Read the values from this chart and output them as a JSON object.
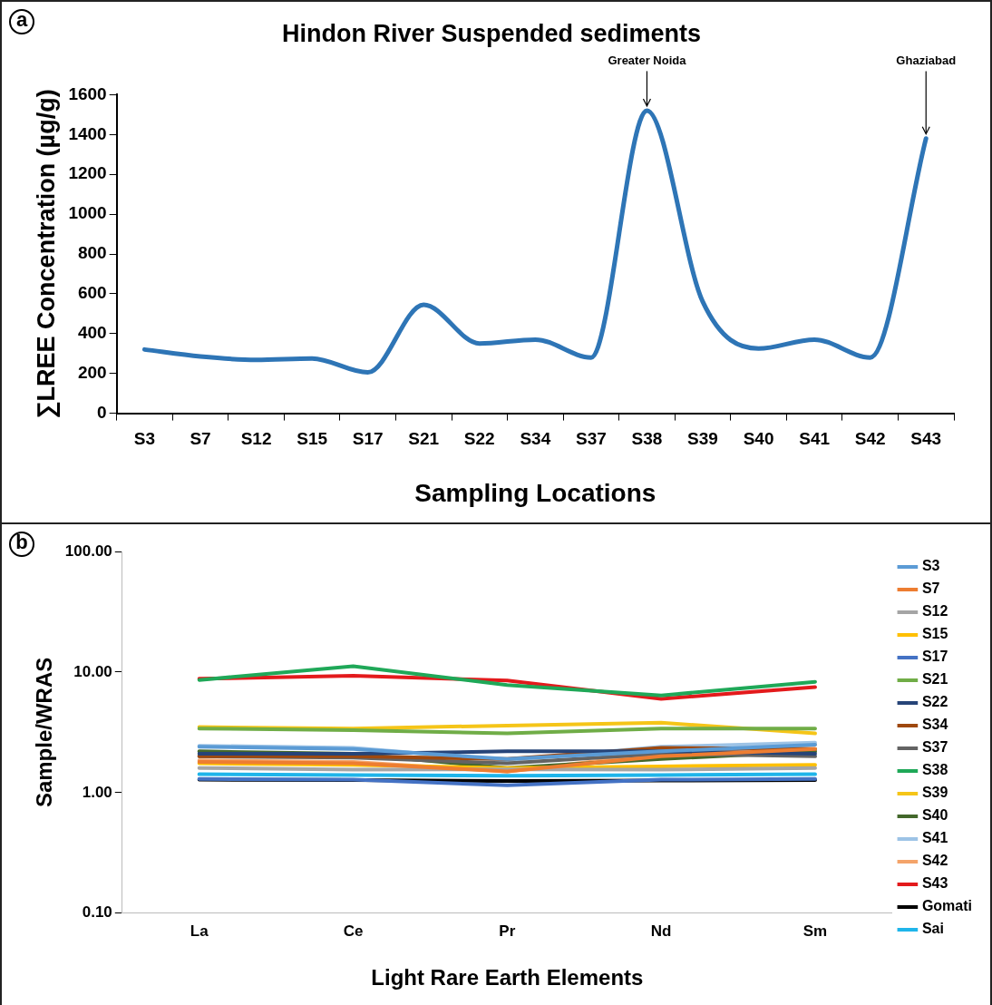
{
  "chart_data": [
    {
      "type": "line",
      "title": "Hindon River Suspended sediments",
      "xlabel": "Sampling Locations",
      "ylabel": "∑LREE Concentration (µg/g)",
      "categories": [
        "S3",
        "S7",
        "S12",
        "S15",
        "S17",
        "S21",
        "S22",
        "S34",
        "S37",
        "S38",
        "S39",
        "S40",
        "S41",
        "S42",
        "S43"
      ],
      "series": [
        {
          "color": "#2e75b6",
          "values": [
            320,
            285,
            268,
            275,
            205,
            545,
            350,
            370,
            280,
            1520,
            560,
            325,
            370,
            280,
            1380
          ]
        }
      ],
      "ylim": [
        0,
        1600
      ],
      "yticks": [
        0,
        200,
        400,
        600,
        800,
        1000,
        1200,
        1400,
        1600
      ],
      "grid": false,
      "legend": false,
      "marker": "none",
      "line_style": "solid",
      "annotations": [
        "a",
        {
          "text": "Greater Noida",
          "x": "S38",
          "y": 1520
        },
        {
          "text": "Ghaziabad",
          "x": "S43",
          "y": 1380
        }
      ]
    },
    {
      "type": "line",
      "xlabel": "Light Rare Earth Elements",
      "ylabel": "Sample/WRAS",
      "categories": [
        "La",
        "Ce",
        "Pr",
        "Nd",
        "Sm"
      ],
      "series": [
        {
          "name": "S3",
          "color": "#5b9bd5",
          "values": [
            2.4,
            2.3,
            1.9,
            2.2,
            2.5
          ]
        },
        {
          "name": "S7",
          "color": "#ed7d31",
          "values": [
            1.8,
            1.75,
            1.5,
            2.0,
            2.3
          ]
        },
        {
          "name": "S12",
          "color": "#a5a5a5",
          "values": [
            1.6,
            1.55,
            1.56,
            1.55,
            1.6
          ]
        },
        {
          "name": "S15",
          "color": "#ffc000",
          "values": [
            1.75,
            1.7,
            1.6,
            1.65,
            1.7
          ]
        },
        {
          "name": "S17",
          "color": "#4472c4",
          "values": [
            1.3,
            1.28,
            1.15,
            1.28,
            1.3
          ]
        },
        {
          "name": "S21",
          "color": "#70ad47",
          "values": [
            3.4,
            3.3,
            3.1,
            3.4,
            3.4
          ]
        },
        {
          "name": "S22",
          "color": "#264478",
          "values": [
            2.1,
            2.1,
            2.2,
            2.2,
            2.1
          ]
        },
        {
          "name": "S34",
          "color": "#9e480e",
          "values": [
            2.0,
            2.0,
            1.9,
            2.35,
            2.3
          ]
        },
        {
          "name": "S37",
          "color": "#636363",
          "values": [
            2.0,
            1.95,
            1.75,
            2.1,
            2.0
          ]
        },
        {
          "name": "S38",
          "color": "#1fa858",
          "values": [
            8.6,
            11.2,
            7.8,
            6.4,
            8.3
          ]
        },
        {
          "name": "S39",
          "color": "#f5c518",
          "values": [
            3.5,
            3.4,
            3.6,
            3.8,
            3.1
          ]
        },
        {
          "name": "S40",
          "color": "#43682b",
          "values": [
            2.2,
            2.1,
            1.6,
            1.9,
            2.2
          ]
        },
        {
          "name": "S41",
          "color": "#9dc3e6",
          "values": [
            2.45,
            2.35,
            1.85,
            2.4,
            2.6
          ]
        },
        {
          "name": "S42",
          "color": "#f4a46a",
          "values": [
            1.85,
            1.8,
            1.5,
            2.1,
            2.5
          ]
        },
        {
          "name": "S43",
          "color": "#e31a1c",
          "values": [
            8.8,
            9.3,
            8.5,
            6.0,
            7.5
          ]
        },
        {
          "name": "Gomati",
          "color": "#000000",
          "values": [
            1.28,
            1.27,
            1.25,
            1.26,
            1.27
          ]
        },
        {
          "name": "Sai",
          "color": "#1fb5ea",
          "values": [
            1.42,
            1.4,
            1.38,
            1.4,
            1.42
          ]
        }
      ],
      "log": "y",
      "ylim": [
        0.1,
        100
      ],
      "yticks": [
        {
          "value": 0.1,
          "label": "0.10"
        },
        {
          "value": 1,
          "label": "1.00"
        },
        {
          "value": 10,
          "label": "10.00"
        },
        {
          "value": 100,
          "label": "100.00"
        }
      ],
      "grid": false,
      "legend": "right",
      "marker": "none",
      "line_style": "solid",
      "annotations": [
        "b"
      ]
    }
  ]
}
